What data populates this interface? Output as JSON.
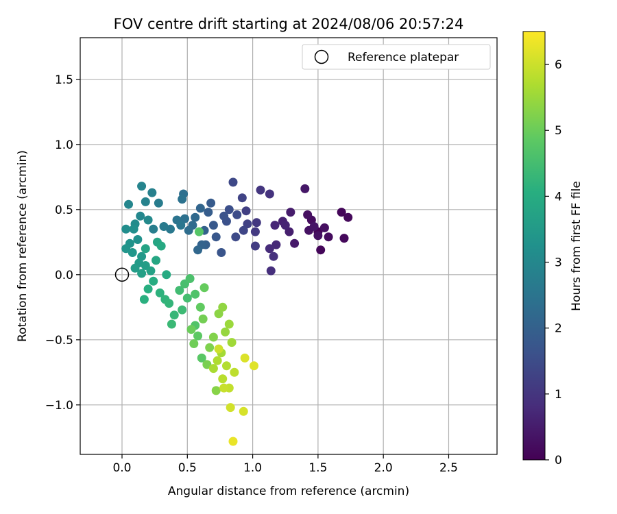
{
  "chart_data": {
    "type": "scatter",
    "title": "FOV centre drift starting at 2024/08/06 20:57:24",
    "xlabel": "Angular distance from reference (arcmin)",
    "ylabel": "Rotation from reference (arcmin)",
    "xlim": [
      -0.32,
      2.87
    ],
    "ylim": [
      -1.38,
      1.82
    ],
    "x_ticks": [
      {
        "value": 0.0,
        "label": "0.0"
      },
      {
        "value": 0.5,
        "label": "0.5"
      },
      {
        "value": 1.0,
        "label": "1.0"
      },
      {
        "value": 1.5,
        "label": "1.5"
      },
      {
        "value": 2.0,
        "label": "2.0"
      },
      {
        "value": 2.5,
        "label": "2.5"
      }
    ],
    "y_ticks": [
      {
        "value": 1.5,
        "label": "1.5"
      },
      {
        "value": 1.0,
        "label": "1.0"
      },
      {
        "value": 0.5,
        "label": "0.5"
      },
      {
        "value": 0.0,
        "label": "0.0"
      },
      {
        "value": -0.5,
        "label": "−0.5"
      },
      {
        "value": -1.0,
        "label": "−1.0"
      }
    ],
    "grid": true,
    "legend": {
      "placement": "top-right",
      "entries": [
        "Reference platepar"
      ]
    },
    "reference_point": {
      "x": 0.0,
      "y": 0.0
    },
    "colorbar": {
      "label": "Hours from first FF file",
      "range": [
        0,
        6.5
      ],
      "colormap": "viridis",
      "ticks": [
        {
          "value": 0,
          "label": "0"
        },
        {
          "value": 1,
          "label": "1"
        },
        {
          "value": 2,
          "label": "2"
        },
        {
          "value": 3,
          "label": "3"
        },
        {
          "value": 4,
          "label": "4"
        },
        {
          "value": 5,
          "label": "5"
        },
        {
          "value": 6,
          "label": "6"
        }
      ]
    },
    "points": [
      [
        1.5,
        0.33,
        0.05
      ],
      [
        1.68,
        0.48,
        0.1
      ],
      [
        1.52,
        0.19,
        0.1
      ],
      [
        1.7,
        0.28,
        0.15
      ],
      [
        1.73,
        0.44,
        0.15
      ],
      [
        1.58,
        0.29,
        0.2
      ],
      [
        1.45,
        0.42,
        0.2
      ],
      [
        1.42,
        0.46,
        0.25
      ],
      [
        1.55,
        0.36,
        0.25
      ],
      [
        1.43,
        0.34,
        0.3
      ],
      [
        1.5,
        0.3,
        0.3
      ],
      [
        1.47,
        0.37,
        0.35
      ],
      [
        1.4,
        0.66,
        0.4
      ],
      [
        1.32,
        0.24,
        0.45
      ],
      [
        1.29,
        0.48,
        0.5
      ],
      [
        1.28,
        0.33,
        0.55
      ],
      [
        1.23,
        0.41,
        0.6
      ],
      [
        1.25,
        0.38,
        0.65
      ],
      [
        1.17,
        0.38,
        0.7
      ],
      [
        1.18,
        0.23,
        0.75
      ],
      [
        1.13,
        0.2,
        0.8
      ],
      [
        1.14,
        0.03,
        0.85
      ],
      [
        1.16,
        0.14,
        0.9
      ],
      [
        1.13,
        0.62,
        0.95
      ],
      [
        1.06,
        0.65,
        1.0
      ],
      [
        1.03,
        0.4,
        1.05
      ],
      [
        1.02,
        0.33,
        1.1
      ],
      [
        1.02,
        0.22,
        1.15
      ],
      [
        0.95,
        0.49,
        1.2
      ],
      [
        0.96,
        0.39,
        1.25
      ],
      [
        0.92,
        0.59,
        1.3
      ],
      [
        0.93,
        0.34,
        1.35
      ],
      [
        0.85,
        0.71,
        1.4
      ],
      [
        0.87,
        0.29,
        1.45
      ],
      [
        0.88,
        0.46,
        1.5
      ],
      [
        0.82,
        0.5,
        1.55
      ],
      [
        0.8,
        0.41,
        1.6
      ],
      [
        0.78,
        0.45,
        1.65
      ],
      [
        0.76,
        0.17,
        1.7
      ],
      [
        0.72,
        0.29,
        1.75
      ],
      [
        0.7,
        0.38,
        1.8
      ],
      [
        0.68,
        0.55,
        1.85
      ],
      [
        0.66,
        0.48,
        1.9
      ],
      [
        0.64,
        0.23,
        1.95
      ],
      [
        0.63,
        0.34,
        2.0
      ],
      [
        0.61,
        0.23,
        2.05
      ],
      [
        0.6,
        0.51,
        2.1
      ],
      [
        0.58,
        0.19,
        2.15
      ],
      [
        0.56,
        0.44,
        2.2
      ],
      [
        0.54,
        0.38,
        2.25
      ],
      [
        0.51,
        0.34,
        2.3
      ],
      [
        0.47,
        0.62,
        2.35
      ],
      [
        0.48,
        0.43,
        2.4
      ],
      [
        0.46,
        0.58,
        2.45
      ],
      [
        0.42,
        0.42,
        2.5
      ],
      [
        0.45,
        0.38,
        2.55
      ],
      [
        0.37,
        0.35,
        2.6
      ],
      [
        0.32,
        0.37,
        2.65
      ],
      [
        0.28,
        0.55,
        2.7
      ],
      [
        0.24,
        0.35,
        2.75
      ],
      [
        0.23,
        0.63,
        2.8
      ],
      [
        0.18,
        0.56,
        2.85
      ],
      [
        0.15,
        0.68,
        2.9
      ],
      [
        0.05,
        0.54,
        2.95
      ],
      [
        0.14,
        0.45,
        3.0
      ],
      [
        0.2,
        0.42,
        3.05
      ],
      [
        0.1,
        0.39,
        3.1
      ],
      [
        0.03,
        0.35,
        3.15
      ],
      [
        0.09,
        0.35,
        3.2
      ],
      [
        0.12,
        0.27,
        3.25
      ],
      [
        0.06,
        0.24,
        3.3
      ],
      [
        0.03,
        0.2,
        3.35
      ],
      [
        0.08,
        0.17,
        3.4
      ],
      [
        0.15,
        0.14,
        3.45
      ],
      [
        0.13,
        0.09,
        3.5
      ],
      [
        0.1,
        0.05,
        3.55
      ],
      [
        0.18,
        0.07,
        3.6
      ],
      [
        0.15,
        0.01,
        3.65
      ],
      [
        0.22,
        0.03,
        3.7
      ],
      [
        0.18,
        0.2,
        3.75
      ],
      [
        0.27,
        0.25,
        3.8
      ],
      [
        0.26,
        0.11,
        3.85
      ],
      [
        0.3,
        0.22,
        3.9
      ],
      [
        0.34,
        0.0,
        3.95
      ],
      [
        0.24,
        -0.05,
        4.0
      ],
      [
        0.2,
        -0.11,
        4.05
      ],
      [
        0.17,
        -0.19,
        4.1
      ],
      [
        0.29,
        -0.14,
        4.15
      ],
      [
        0.33,
        -0.19,
        4.2
      ],
      [
        0.36,
        -0.22,
        4.25
      ],
      [
        0.4,
        -0.31,
        4.3
      ],
      [
        0.38,
        -0.38,
        4.35
      ],
      [
        0.46,
        -0.27,
        4.4
      ],
      [
        0.44,
        -0.12,
        4.45
      ],
      [
        0.5,
        -0.18,
        4.5
      ],
      [
        0.48,
        -0.07,
        4.55
      ],
      [
        0.52,
        -0.03,
        4.6
      ],
      [
        0.56,
        -0.15,
        4.65
      ],
      [
        0.56,
        -0.39,
        4.7
      ],
      [
        0.59,
        0.33,
        4.75
      ],
      [
        0.61,
        -0.64,
        4.8
      ],
      [
        0.58,
        -0.47,
        4.85
      ],
      [
        0.6,
        -0.25,
        4.9
      ],
      [
        0.63,
        -0.1,
        4.95
      ],
      [
        0.53,
        -0.42,
        5.0
      ],
      [
        0.55,
        -0.53,
        5.05
      ],
      [
        0.62,
        -0.34,
        5.1
      ],
      [
        0.65,
        -0.69,
        5.15
      ],
      [
        0.67,
        -0.56,
        5.2
      ],
      [
        0.7,
        -0.48,
        5.25
      ],
      [
        0.72,
        -0.89,
        5.3
      ],
      [
        0.74,
        -0.3,
        5.35
      ],
      [
        0.77,
        -0.25,
        5.4
      ],
      [
        0.79,
        -0.44,
        5.45
      ],
      [
        0.82,
        -0.38,
        5.5
      ],
      [
        0.84,
        -0.52,
        5.55
      ],
      [
        0.76,
        -0.6,
        5.6
      ],
      [
        0.7,
        -0.72,
        5.65
      ],
      [
        0.73,
        -0.66,
        5.7
      ],
      [
        0.8,
        -0.7,
        5.75
      ],
      [
        0.77,
        -0.8,
        5.8
      ],
      [
        0.86,
        -0.75,
        5.85
      ],
      [
        0.82,
        -0.87,
        5.9
      ],
      [
        0.78,
        -0.87,
        5.95
      ],
      [
        0.74,
        -0.57,
        6.0
      ],
      [
        0.83,
        -1.02,
        6.05
      ],
      [
        0.93,
        -1.05,
        6.1
      ],
      [
        0.94,
        -0.64,
        6.15
      ],
      [
        1.01,
        -0.7,
        6.2
      ],
      [
        0.85,
        -1.28,
        6.3
      ]
    ]
  }
}
